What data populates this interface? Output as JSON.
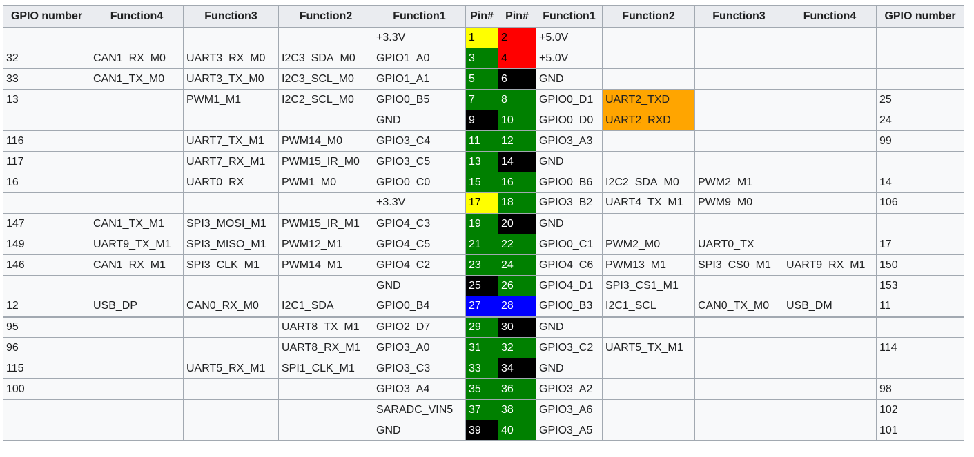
{
  "headers": [
    "GPIO number",
    "Function4",
    "Function3",
    "Function2",
    "Function1",
    "Pin#",
    "Pin#",
    "Function1",
    "Function2",
    "Function3",
    "Function4",
    "GPIO number"
  ],
  "colors": {
    "yellow": "#ffff00",
    "red": "#ff0000",
    "green": "#008000",
    "black": "#000000",
    "blue": "#0000ff",
    "orange": "#ffa500"
  },
  "rows": [
    {
      "left": [
        "",
        "",
        "",
        "",
        "+3.3V"
      ],
      "pinL": "1",
      "colL": "yellow",
      "pinR": "2",
      "colR": "red",
      "right": [
        "+5.0V",
        "",
        "",
        "",
        ""
      ]
    },
    {
      "left": [
        "32",
        "CAN1_RX_M0",
        "UART3_RX_M0",
        "I2C3_SDA_M0",
        "GPIO1_A0"
      ],
      "pinL": "3",
      "colL": "green",
      "pinR": "4",
      "colR": "red",
      "right": [
        "+5.0V",
        "",
        "",
        "",
        ""
      ]
    },
    {
      "left": [
        "33",
        "CAN1_TX_M0",
        "UART3_TX_M0",
        "I2C3_SCL_M0",
        "GPIO1_A1"
      ],
      "pinL": "5",
      "colL": "green",
      "pinR": "6",
      "colR": "black",
      "right": [
        "GND",
        "",
        "",
        "",
        ""
      ]
    },
    {
      "left": [
        "13",
        "",
        "PWM1_M1",
        "I2C2_SCL_M0",
        "GPIO0_B5"
      ],
      "pinL": "7",
      "colL": "green",
      "pinR": "8",
      "colR": "green",
      "right": [
        "GPIO0_D1",
        "UART2_TXD",
        "",
        "",
        "25"
      ],
      "hlR": 1
    },
    {
      "left": [
        "",
        "",
        "",
        "",
        "GND"
      ],
      "pinL": "9",
      "colL": "black",
      "pinR": "10",
      "colR": "green",
      "right": [
        "GPIO0_D0",
        "UART2_RXD",
        "",
        "",
        "24"
      ],
      "hlR": 1
    },
    {
      "left": [
        "116",
        "",
        "UART7_TX_M1",
        "PWM14_M0",
        "GPIO3_C4"
      ],
      "pinL": "11",
      "colL": "green",
      "pinR": "12",
      "colR": "green",
      "right": [
        "GPIO3_A3",
        "",
        "",
        "",
        "99"
      ]
    },
    {
      "left": [
        "117",
        "",
        "UART7_RX_M1",
        "PWM15_IR_M0",
        "GPIO3_C5"
      ],
      "pinL": "13",
      "colL": "green",
      "pinR": "14",
      "colR": "black",
      "right": [
        "GND",
        "",
        "",
        "",
        ""
      ]
    },
    {
      "left": [
        "16",
        "",
        "UART0_RX",
        "PWM1_M0",
        "GPIO0_C0"
      ],
      "pinL": "15",
      "colL": "green",
      "pinR": "16",
      "colR": "green",
      "right": [
        "GPIO0_B6",
        "I2C2_SDA_M0",
        "PWM2_M1",
        "",
        "14"
      ]
    },
    {
      "left": [
        "",
        "",
        "",
        "",
        "+3.3V"
      ],
      "pinL": "17",
      "colL": "yellow",
      "pinR": "18",
      "colR": "green",
      "right": [
        "GPIO3_B2",
        "UART4_TX_M1",
        "PWM9_M0",
        "",
        "106"
      ]
    },
    {
      "left": [
        "147",
        "CAN1_TX_M1",
        "SPI3_MOSI_M1",
        "PWM15_IR_M1",
        "GPIO4_C3"
      ],
      "pinL": "19",
      "colL": "green",
      "pinR": "20",
      "colR": "black",
      "right": [
        "GND",
        "",
        "",
        "",
        ""
      ],
      "sep": true
    },
    {
      "left": [
        "149",
        "UART9_TX_M1",
        "SPI3_MISO_M1",
        "PWM12_M1",
        "GPIO4_C5"
      ],
      "pinL": "21",
      "colL": "green",
      "pinR": "22",
      "colR": "green",
      "right": [
        "GPIO0_C1",
        "PWM2_M0",
        "UART0_TX",
        "",
        "17"
      ]
    },
    {
      "left": [
        "146",
        "CAN1_RX_M1",
        "SPI3_CLK_M1",
        "PWM14_M1",
        "GPIO4_C2"
      ],
      "pinL": "23",
      "colL": "green",
      "pinR": "24",
      "colR": "green",
      "right": [
        "GPIO4_C6",
        "PWM13_M1",
        "SPI3_CS0_M1",
        "UART9_RX_M1",
        "150"
      ]
    },
    {
      "left": [
        "",
        "",
        "",
        "",
        "GND"
      ],
      "pinL": "25",
      "colL": "black",
      "pinR": "26",
      "colR": "green",
      "right": [
        "GPIO4_D1",
        "SPI3_CS1_M1",
        "",
        "",
        "153"
      ]
    },
    {
      "left": [
        "12",
        "USB_DP",
        "CAN0_RX_M0",
        "I2C1_SDA",
        "GPIO0_B4"
      ],
      "pinL": "27",
      "colL": "blue",
      "pinR": "28",
      "colR": "blue",
      "right": [
        "GPIO0_B3",
        "I2C1_SCL",
        "CAN0_TX_M0",
        "USB_DM",
        "11"
      ]
    },
    {
      "left": [
        "95",
        "",
        "",
        "UART8_TX_M1",
        "GPIO2_D7"
      ],
      "pinL": "29",
      "colL": "green",
      "pinR": "30",
      "colR": "black",
      "right": [
        "GND",
        "",
        "",
        "",
        ""
      ],
      "sep": true
    },
    {
      "left": [
        "96",
        "",
        "",
        "UART8_RX_M1",
        "GPIO3_A0"
      ],
      "pinL": "31",
      "colL": "green",
      "pinR": "32",
      "colR": "green",
      "right": [
        "GPIO3_C2",
        "UART5_TX_M1",
        "",
        "",
        "114"
      ]
    },
    {
      "left": [
        "115",
        "",
        "UART5_RX_M1",
        "SPI1_CLK_M1",
        "GPIO3_C3"
      ],
      "pinL": "33",
      "colL": "green",
      "pinR": "34",
      "colR": "black",
      "right": [
        "GND",
        "",
        "",
        "",
        ""
      ]
    },
    {
      "left": [
        "100",
        "",
        "",
        "",
        "GPIO3_A4"
      ],
      "pinL": "35",
      "colL": "green",
      "pinR": "36",
      "colR": "green",
      "right": [
        "GPIO3_A2",
        "",
        "",
        "",
        "98"
      ]
    },
    {
      "left": [
        "",
        "",
        "",
        "",
        "SARADC_VIN5"
      ],
      "pinL": "37",
      "colL": "green",
      "pinR": "38",
      "colR": "green",
      "right": [
        "GPIO3_A6",
        "",
        "",
        "",
        "102"
      ]
    },
    {
      "left": [
        "",
        "",
        "",
        "",
        "GND"
      ],
      "pinL": "39",
      "colL": "black",
      "pinR": "40",
      "colR": "green",
      "right": [
        "GPIO3_A5",
        "",
        "",
        "",
        "101"
      ]
    }
  ]
}
